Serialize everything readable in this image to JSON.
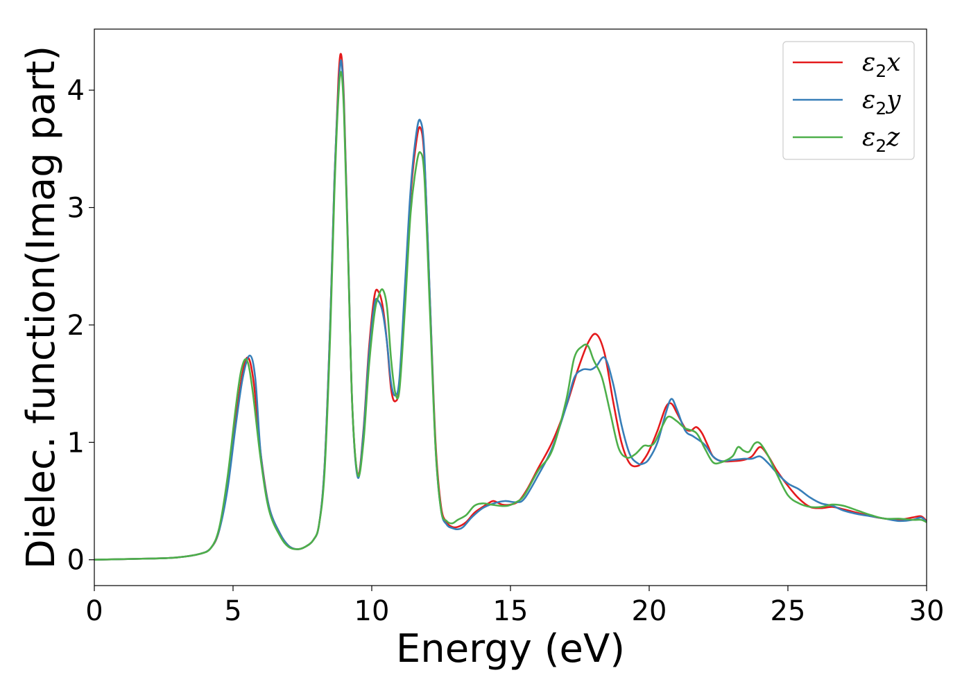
{
  "chart_data": {
    "type": "line",
    "title": "",
    "xlabel": "Energy (eV)",
    "ylabel": "Dielec. function(Imag part)",
    "xlim": [
      0,
      30
    ],
    "ylim": [
      -0.22,
      4.52
    ],
    "xticks": [
      0,
      5,
      10,
      15,
      20,
      25,
      30
    ],
    "yticks": [
      0,
      1,
      2,
      3,
      4
    ],
    "grid": false,
    "legend_position": "top-right",
    "series": [
      {
        "name": "ε2x",
        "legend_base": "ε",
        "legend_sub": "2",
        "legend_suffix": "x",
        "color": "#e41a1c",
        "x": [
          0,
          2,
          3,
          3.8,
          4.2,
          4.5,
          4.8,
          5.1,
          5.35,
          5.55,
          5.75,
          6.0,
          6.3,
          6.7,
          7.0,
          7.3,
          7.6,
          7.9,
          8.1,
          8.3,
          8.5,
          8.65,
          8.8,
          8.9,
          9.0,
          9.15,
          9.3,
          9.5,
          9.7,
          9.9,
          10.1,
          10.25,
          10.4,
          10.55,
          10.7,
          10.85,
          11.0,
          11.2,
          11.4,
          11.6,
          11.75,
          11.9,
          12.1,
          12.3,
          12.5,
          12.7,
          12.9,
          13.1,
          13.4,
          13.7,
          14.0,
          14.2,
          14.4,
          14.7,
          15.0,
          15.3,
          15.6,
          16.0,
          16.5,
          17.0,
          17.4,
          17.8,
          18.1,
          18.4,
          18.7,
          19.0,
          19.3,
          19.6,
          19.8,
          20.0,
          20.3,
          20.6,
          20.8,
          21.0,
          21.3,
          21.5,
          21.7,
          21.9,
          22.1,
          22.3,
          22.6,
          23.0,
          23.4,
          23.7,
          24.0,
          24.3,
          24.6,
          25.0,
          25.4,
          25.8,
          26.2,
          26.6,
          27.0,
          27.5,
          28.0,
          28.5,
          29.0,
          29.5,
          29.8,
          30.0
        ],
        "y": [
          0,
          0.01,
          0.02,
          0.05,
          0.1,
          0.25,
          0.65,
          1.2,
          1.6,
          1.72,
          1.5,
          0.9,
          0.45,
          0.22,
          0.12,
          0.09,
          0.11,
          0.17,
          0.3,
          0.8,
          2.0,
          3.2,
          4.1,
          4.3,
          3.9,
          2.6,
          1.3,
          0.72,
          1.1,
          1.8,
          2.25,
          2.28,
          2.15,
          1.85,
          1.45,
          1.35,
          1.5,
          2.3,
          3.1,
          3.55,
          3.68,
          3.4,
          2.2,
          1.0,
          0.45,
          0.32,
          0.28,
          0.28,
          0.32,
          0.4,
          0.45,
          0.48,
          0.5,
          0.47,
          0.47,
          0.5,
          0.6,
          0.78,
          1.0,
          1.3,
          1.6,
          1.85,
          1.92,
          1.75,
          1.35,
          1.0,
          0.82,
          0.8,
          0.85,
          0.93,
          1.1,
          1.3,
          1.33,
          1.25,
          1.12,
          1.1,
          1.13,
          1.08,
          0.98,
          0.88,
          0.84,
          0.84,
          0.85,
          0.88,
          0.96,
          0.88,
          0.76,
          0.63,
          0.52,
          0.45,
          0.44,
          0.45,
          0.43,
          0.4,
          0.37,
          0.35,
          0.34,
          0.36,
          0.37,
          0.33
        ]
      },
      {
        "name": "ε2y",
        "legend_base": "ε",
        "legend_sub": "2",
        "legend_suffix": "y",
        "color": "#377eb8",
        "x": [
          0,
          2,
          3,
          3.8,
          4.2,
          4.5,
          4.8,
          5.1,
          5.35,
          5.6,
          5.8,
          6.0,
          6.3,
          6.7,
          7.0,
          7.3,
          7.6,
          7.9,
          8.1,
          8.3,
          8.5,
          8.65,
          8.8,
          8.9,
          9.0,
          9.15,
          9.3,
          9.5,
          9.7,
          9.9,
          10.1,
          10.25,
          10.4,
          10.55,
          10.7,
          10.85,
          11.0,
          11.2,
          11.4,
          11.6,
          11.75,
          11.9,
          12.1,
          12.3,
          12.5,
          12.7,
          12.9,
          13.1,
          13.3,
          13.6,
          14.0,
          14.4,
          14.8,
          15.2,
          15.5,
          16.0,
          16.5,
          17.0,
          17.3,
          17.6,
          17.9,
          18.1,
          18.4,
          18.7,
          19.0,
          19.3,
          19.6,
          19.8,
          20.0,
          20.3,
          20.6,
          20.8,
          21.0,
          21.3,
          21.6,
          22.0,
          22.3,
          22.6,
          23.0,
          23.4,
          23.7,
          24.0,
          24.3,
          24.6,
          25.0,
          25.4,
          25.8,
          26.2,
          26.6,
          27.0,
          27.5,
          28.0,
          28.5,
          29.0,
          29.5,
          29.8,
          30.0
        ],
        "y": [
          0,
          0.01,
          0.02,
          0.05,
          0.1,
          0.25,
          0.6,
          1.15,
          1.55,
          1.74,
          1.55,
          0.9,
          0.45,
          0.22,
          0.12,
          0.09,
          0.11,
          0.17,
          0.3,
          0.8,
          2.0,
          3.2,
          4.0,
          4.25,
          3.85,
          2.6,
          1.3,
          0.7,
          1.08,
          1.75,
          2.18,
          2.2,
          2.1,
          1.85,
          1.5,
          1.4,
          1.55,
          2.35,
          3.15,
          3.62,
          3.74,
          3.45,
          2.2,
          0.95,
          0.42,
          0.3,
          0.27,
          0.26,
          0.28,
          0.36,
          0.44,
          0.48,
          0.5,
          0.49,
          0.52,
          0.72,
          0.95,
          1.3,
          1.55,
          1.62,
          1.62,
          1.65,
          1.72,
          1.5,
          1.15,
          0.9,
          0.82,
          0.82,
          0.86,
          1.0,
          1.25,
          1.37,
          1.28,
          1.1,
          1.05,
          0.98,
          0.88,
          0.84,
          0.85,
          0.86,
          0.86,
          0.88,
          0.82,
          0.74,
          0.65,
          0.6,
          0.53,
          0.48,
          0.46,
          0.42,
          0.39,
          0.37,
          0.35,
          0.33,
          0.34,
          0.36,
          0.32
        ]
      },
      {
        "name": "ε2z",
        "legend_base": "ε",
        "legend_sub": "2",
        "legend_suffix": "z",
        "color": "#4daf4a",
        "x": [
          0,
          2,
          3,
          3.8,
          4.2,
          4.5,
          4.8,
          5.1,
          5.3,
          5.5,
          5.7,
          6.0,
          6.3,
          6.7,
          7.0,
          7.3,
          7.6,
          7.9,
          8.1,
          8.3,
          8.5,
          8.65,
          8.8,
          8.9,
          9.0,
          9.15,
          9.3,
          9.5,
          9.7,
          9.9,
          10.1,
          10.25,
          10.4,
          10.55,
          10.7,
          10.85,
          11.0,
          11.2,
          11.4,
          11.6,
          11.75,
          11.9,
          12.1,
          12.3,
          12.5,
          12.7,
          12.9,
          13.1,
          13.4,
          13.7,
          14.0,
          14.3,
          14.6,
          14.9,
          15.2,
          15.5,
          16.0,
          16.5,
          17.0,
          17.3,
          17.6,
          17.8,
          18.0,
          18.3,
          18.6,
          18.9,
          19.2,
          19.5,
          19.8,
          20.0,
          20.2,
          20.5,
          20.7,
          21.0,
          21.3,
          21.7,
          22.0,
          22.3,
          22.6,
          23.0,
          23.2,
          23.4,
          23.6,
          23.8,
          24.0,
          24.3,
          24.6,
          25.0,
          25.4,
          25.8,
          26.2,
          26.6,
          27.0,
          27.5,
          28.0,
          28.5,
          29.0,
          29.5,
          29.8,
          30.0
        ],
        "y": [
          0,
          0.01,
          0.02,
          0.05,
          0.1,
          0.27,
          0.7,
          1.3,
          1.62,
          1.7,
          1.45,
          0.85,
          0.42,
          0.2,
          0.11,
          0.09,
          0.11,
          0.17,
          0.3,
          0.75,
          1.9,
          3.1,
          3.95,
          4.15,
          3.8,
          2.55,
          1.3,
          0.72,
          1.0,
          1.65,
          2.1,
          2.25,
          2.3,
          2.15,
          1.7,
          1.42,
          1.45,
          2.15,
          2.95,
          3.35,
          3.47,
          3.25,
          2.1,
          0.95,
          0.42,
          0.33,
          0.31,
          0.34,
          0.38,
          0.46,
          0.48,
          0.47,
          0.46,
          0.46,
          0.49,
          0.55,
          0.76,
          0.93,
          1.35,
          1.72,
          1.82,
          1.82,
          1.7,
          1.55,
          1.25,
          0.95,
          0.87,
          0.9,
          0.97,
          0.97,
          1.0,
          1.15,
          1.22,
          1.18,
          1.12,
          1.08,
          0.95,
          0.83,
          0.83,
          0.88,
          0.96,
          0.93,
          0.92,
          0.99,
          0.99,
          0.88,
          0.73,
          0.55,
          0.48,
          0.45,
          0.45,
          0.47,
          0.46,
          0.42,
          0.38,
          0.35,
          0.35,
          0.34,
          0.34,
          0.32
        ]
      }
    ]
  }
}
